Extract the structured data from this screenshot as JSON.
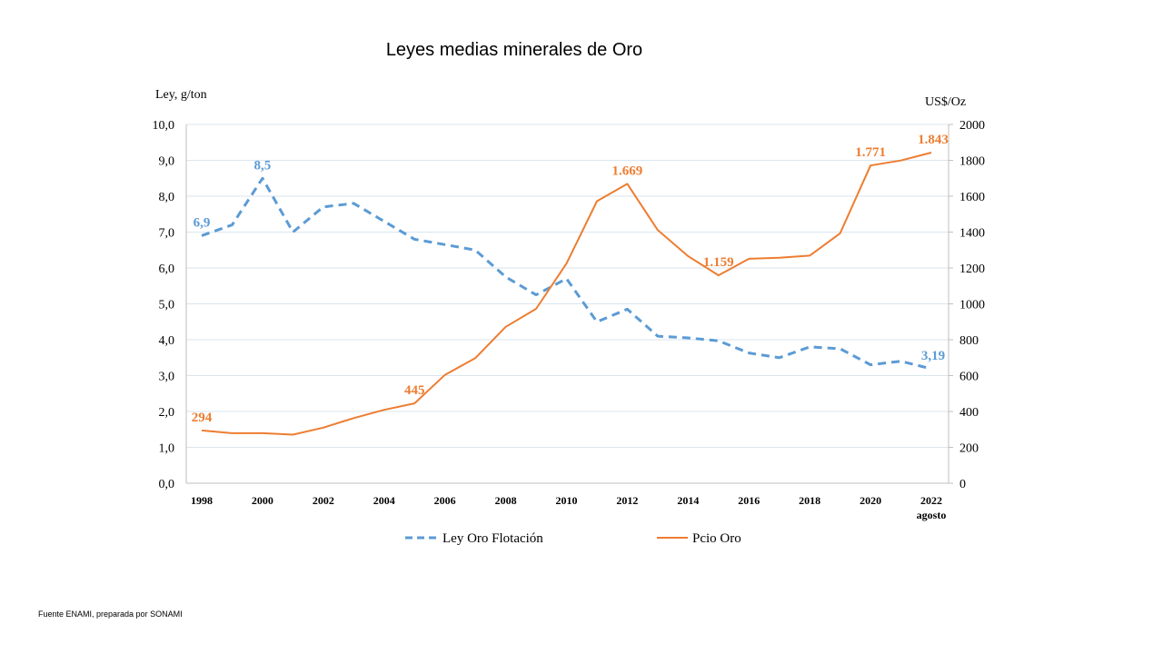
{
  "chart_data": {
    "type": "line",
    "title": "Leyes medias minerales de Oro",
    "y_left_label": "Ley, g/ton",
    "y_right_label": "US$/Oz",
    "y_left_range": [
      0,
      10
    ],
    "y_right_range": [
      0,
      2000
    ],
    "y_left_ticks": [
      "0,0",
      "1,0",
      "2,0",
      "3,0",
      "4,0",
      "5,0",
      "6,0",
      "7,0",
      "8,0",
      "9,0",
      "10,0"
    ],
    "y_right_ticks": [
      "0",
      "200",
      "400",
      "600",
      "800",
      "1000",
      "1200",
      "1400",
      "1600",
      "1800",
      "2000"
    ],
    "x": [
      1998,
      1999,
      2000,
      2001,
      2002,
      2003,
      2004,
      2005,
      2006,
      2007,
      2008,
      2009,
      2010,
      2011,
      2012,
      2013,
      2014,
      2015,
      2016,
      2017,
      2018,
      2019,
      2020,
      2021,
      2022
    ],
    "x_tick_labels": [
      "1998",
      "2000",
      "2002",
      "2004",
      "2006",
      "2008",
      "2010",
      "2012",
      "2014",
      "2016",
      "2018",
      "2020",
      "2022"
    ],
    "x_last_sublabel": "agosto",
    "grid": "horizontal",
    "legend_position": "bottom",
    "series": [
      {
        "name": "Ley Oro Flotación",
        "axis": "left",
        "color": "#5B9BD5",
        "style": "dashed",
        "values": [
          6.9,
          7.2,
          8.5,
          7.0,
          7.7,
          7.8,
          7.3,
          6.8,
          6.65,
          6.5,
          5.75,
          5.25,
          5.7,
          4.5,
          4.85,
          4.1,
          4.05,
          3.97,
          3.63,
          3.5,
          3.8,
          3.75,
          3.3,
          3.4,
          3.19
        ],
        "data_labels": [
          {
            "x": 1998,
            "value": 6.9,
            "text": "6,9"
          },
          {
            "x": 2000,
            "value": 8.5,
            "text": "8,5"
          },
          {
            "x": 2022,
            "value": 3.19,
            "text": "3,19"
          }
        ]
      },
      {
        "name": "Pcio Oro",
        "axis": "right",
        "color": "#ED7D31",
        "style": "solid",
        "values": [
          294,
          279,
          279,
          271,
          310,
          363,
          409,
          445,
          604,
          697,
          872,
          972,
          1225,
          1572,
          1669,
          1411,
          1266,
          1159,
          1251,
          1257,
          1269,
          1393,
          1771,
          1799,
          1843
        ],
        "data_labels": [
          {
            "x": 1998,
            "value": 294,
            "text": "294"
          },
          {
            "x": 2005,
            "value": 445,
            "text": "445"
          },
          {
            "x": 2012,
            "value": 1669,
            "text": "1.669"
          },
          {
            "x": 2015,
            "value": 1159,
            "text": "1.159"
          },
          {
            "x": 2020,
            "value": 1771,
            "text": "1.771"
          },
          {
            "x": 2022,
            "value": 1843,
            "text": "1.843"
          }
        ]
      }
    ]
  },
  "footer": {
    "source": "Fuente ENAMI, preparada por SONAMI"
  }
}
